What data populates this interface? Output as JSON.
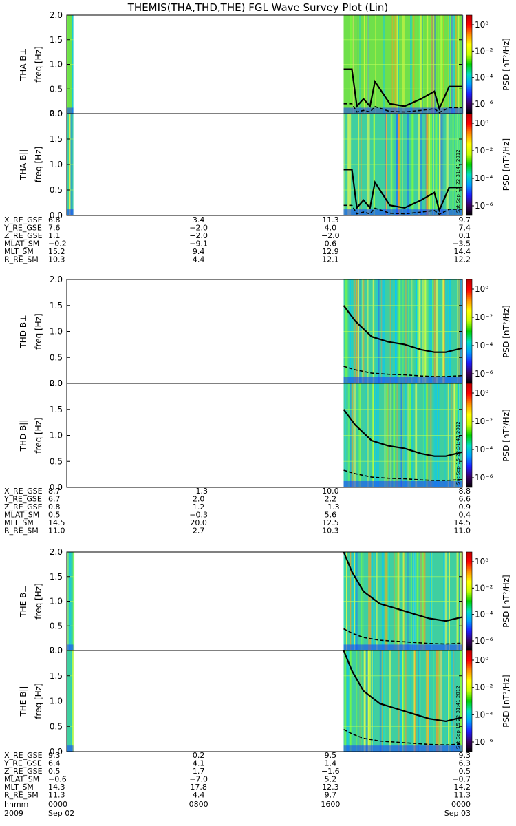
{
  "title": "THEMIS(THA,THD,THE) FGL Wave Survey Plot (Lin)",
  "colorbar": {
    "label": "PSD [nT²/Hz]",
    "ticks": [
      "10⁰",
      "10⁻²",
      "10⁻⁴",
      "10⁻⁶"
    ],
    "colors": [
      "#000000",
      "#3a0066",
      "#1e1eff",
      "#00a0ff",
      "#00e0c0",
      "#00d000",
      "#c8ff00",
      "#ffff00",
      "#ff9000",
      "#ff0000",
      "#c00000"
    ]
  },
  "stamp": "Sat Sep 15 22:31:41 2012",
  "ephemeris_labels": [
    "X_RE_GSE",
    "Y_RE_GSE",
    "Z_RE_GSE",
    "MLAT_SM",
    "MLT_SM",
    "R_RE_SM"
  ],
  "time_axis": {
    "labels": [
      "hhmm",
      "0000",
      "0800",
      "1600",
      "0000"
    ],
    "dates": [
      "2009",
      "Sep 02",
      "Sep 03"
    ]
  },
  "chart_data": [
    {
      "type": "heatmap",
      "probe": "THA",
      "panels": [
        {
          "ylabel": "THA B⊥",
          "yunit": "freq [Hz]",
          "ylim": [
            0,
            2.0
          ]
        },
        {
          "ylabel": "THA B||",
          "yunit": "freq [Hz]",
          "ylim": [
            0,
            2.0
          ]
        }
      ],
      "yticks": [
        "0.0",
        "0.5",
        "1.0",
        "1.5",
        "2.0"
      ],
      "data_coverage_hours": [
        [
          0.0,
          0.4
        ],
        [
          16.8,
          24.0
        ]
      ],
      "gyro_line": {
        "t": [
          16.8,
          17.3,
          17.6,
          18.0,
          18.4,
          18.7,
          19.6,
          20.5,
          21.5,
          22.3,
          22.6,
          23.2,
          24.0
        ],
        "f": [
          0.9,
          0.9,
          0.15,
          0.3,
          0.15,
          0.65,
          0.2,
          0.15,
          0.3,
          0.45,
          0.1,
          0.55,
          0.55
        ]
      },
      "ephemeris": [
        [
          "6.8",
          "3.4",
          "11.3",
          "9.7"
        ],
        [
          "7.6",
          "−2.0",
          "4.0",
          "7.4"
        ],
        [
          "1.1",
          "−2.0",
          "−2.0",
          "0.1"
        ],
        [
          "−0.2",
          "−9.1",
          "0.6",
          "−3.5"
        ],
        [
          "15.2",
          "9.4",
          "12.9",
          "14.4"
        ],
        [
          "10.3",
          "4.4",
          "12.1",
          "12.2"
        ]
      ]
    },
    {
      "type": "heatmap",
      "probe": "THD",
      "panels": [
        {
          "ylabel": "THD B⊥",
          "yunit": "freq [Hz]",
          "ylim": [
            0,
            2.0
          ]
        },
        {
          "ylabel": "THD B||",
          "yunit": "freq [Hz]",
          "ylim": [
            0,
            2.0
          ]
        }
      ],
      "yticks": [
        "0.0",
        "0.5",
        "1.0",
        "1.5",
        "2.0"
      ],
      "data_coverage_hours": [
        [
          16.8,
          24.0
        ]
      ],
      "gyro_line": {
        "t": [
          16.8,
          17.5,
          18.5,
          19.5,
          20.5,
          21.5,
          22.3,
          23.0,
          24.0
        ],
        "f": [
          1.5,
          1.2,
          0.9,
          0.8,
          0.75,
          0.65,
          0.6,
          0.6,
          0.68
        ]
      },
      "ephemeris": [
        [
          "8.7",
          "−1.3",
          "10.0",
          "8.8"
        ],
        [
          "6.7",
          "2.0",
          "2.2",
          "6.6"
        ],
        [
          "0.8",
          "1.2",
          "−1.3",
          "0.9"
        ],
        [
          "0.5",
          "−0.3",
          "5.6",
          "0.4"
        ],
        [
          "14.5",
          "20.0",
          "12.5",
          "14.5"
        ],
        [
          "11.0",
          "2.7",
          "10.3",
          "11.0"
        ]
      ]
    },
    {
      "type": "heatmap",
      "probe": "THE",
      "panels": [
        {
          "ylabel": "THE B⊥",
          "yunit": "freq [Hz]",
          "ylim": [
            0,
            2.0
          ]
        },
        {
          "ylabel": "THE B||",
          "yunit": "freq [Hz]",
          "ylim": [
            0,
            2.0
          ]
        }
      ],
      "yticks": [
        "0.0",
        "0.5",
        "1.0",
        "1.5",
        "2.0"
      ],
      "data_coverage_hours": [
        [
          0.0,
          0.4
        ],
        [
          16.8,
          24.0
        ]
      ],
      "gyro_line": {
        "t": [
          16.8,
          17.3,
          18.0,
          19.0,
          20.0,
          21.0,
          22.0,
          23.0,
          24.0
        ],
        "f": [
          2.0,
          1.6,
          1.2,
          0.95,
          0.85,
          0.75,
          0.65,
          0.6,
          0.68
        ]
      },
      "ephemeris": [
        [
          "9.3",
          "0.2",
          "9.5",
          "9.3"
        ],
        [
          "6.4",
          "4.1",
          "1.4",
          "6.3"
        ],
        [
          "0.5",
          "1.7",
          "−1.6",
          "0.5"
        ],
        [
          "−0.6",
          "−7.0",
          "5.2",
          "−0.7"
        ],
        [
          "14.3",
          "17.8",
          "12.3",
          "14.2"
        ],
        [
          "11.3",
          "4.4",
          "9.7",
          "11.3"
        ]
      ]
    }
  ]
}
